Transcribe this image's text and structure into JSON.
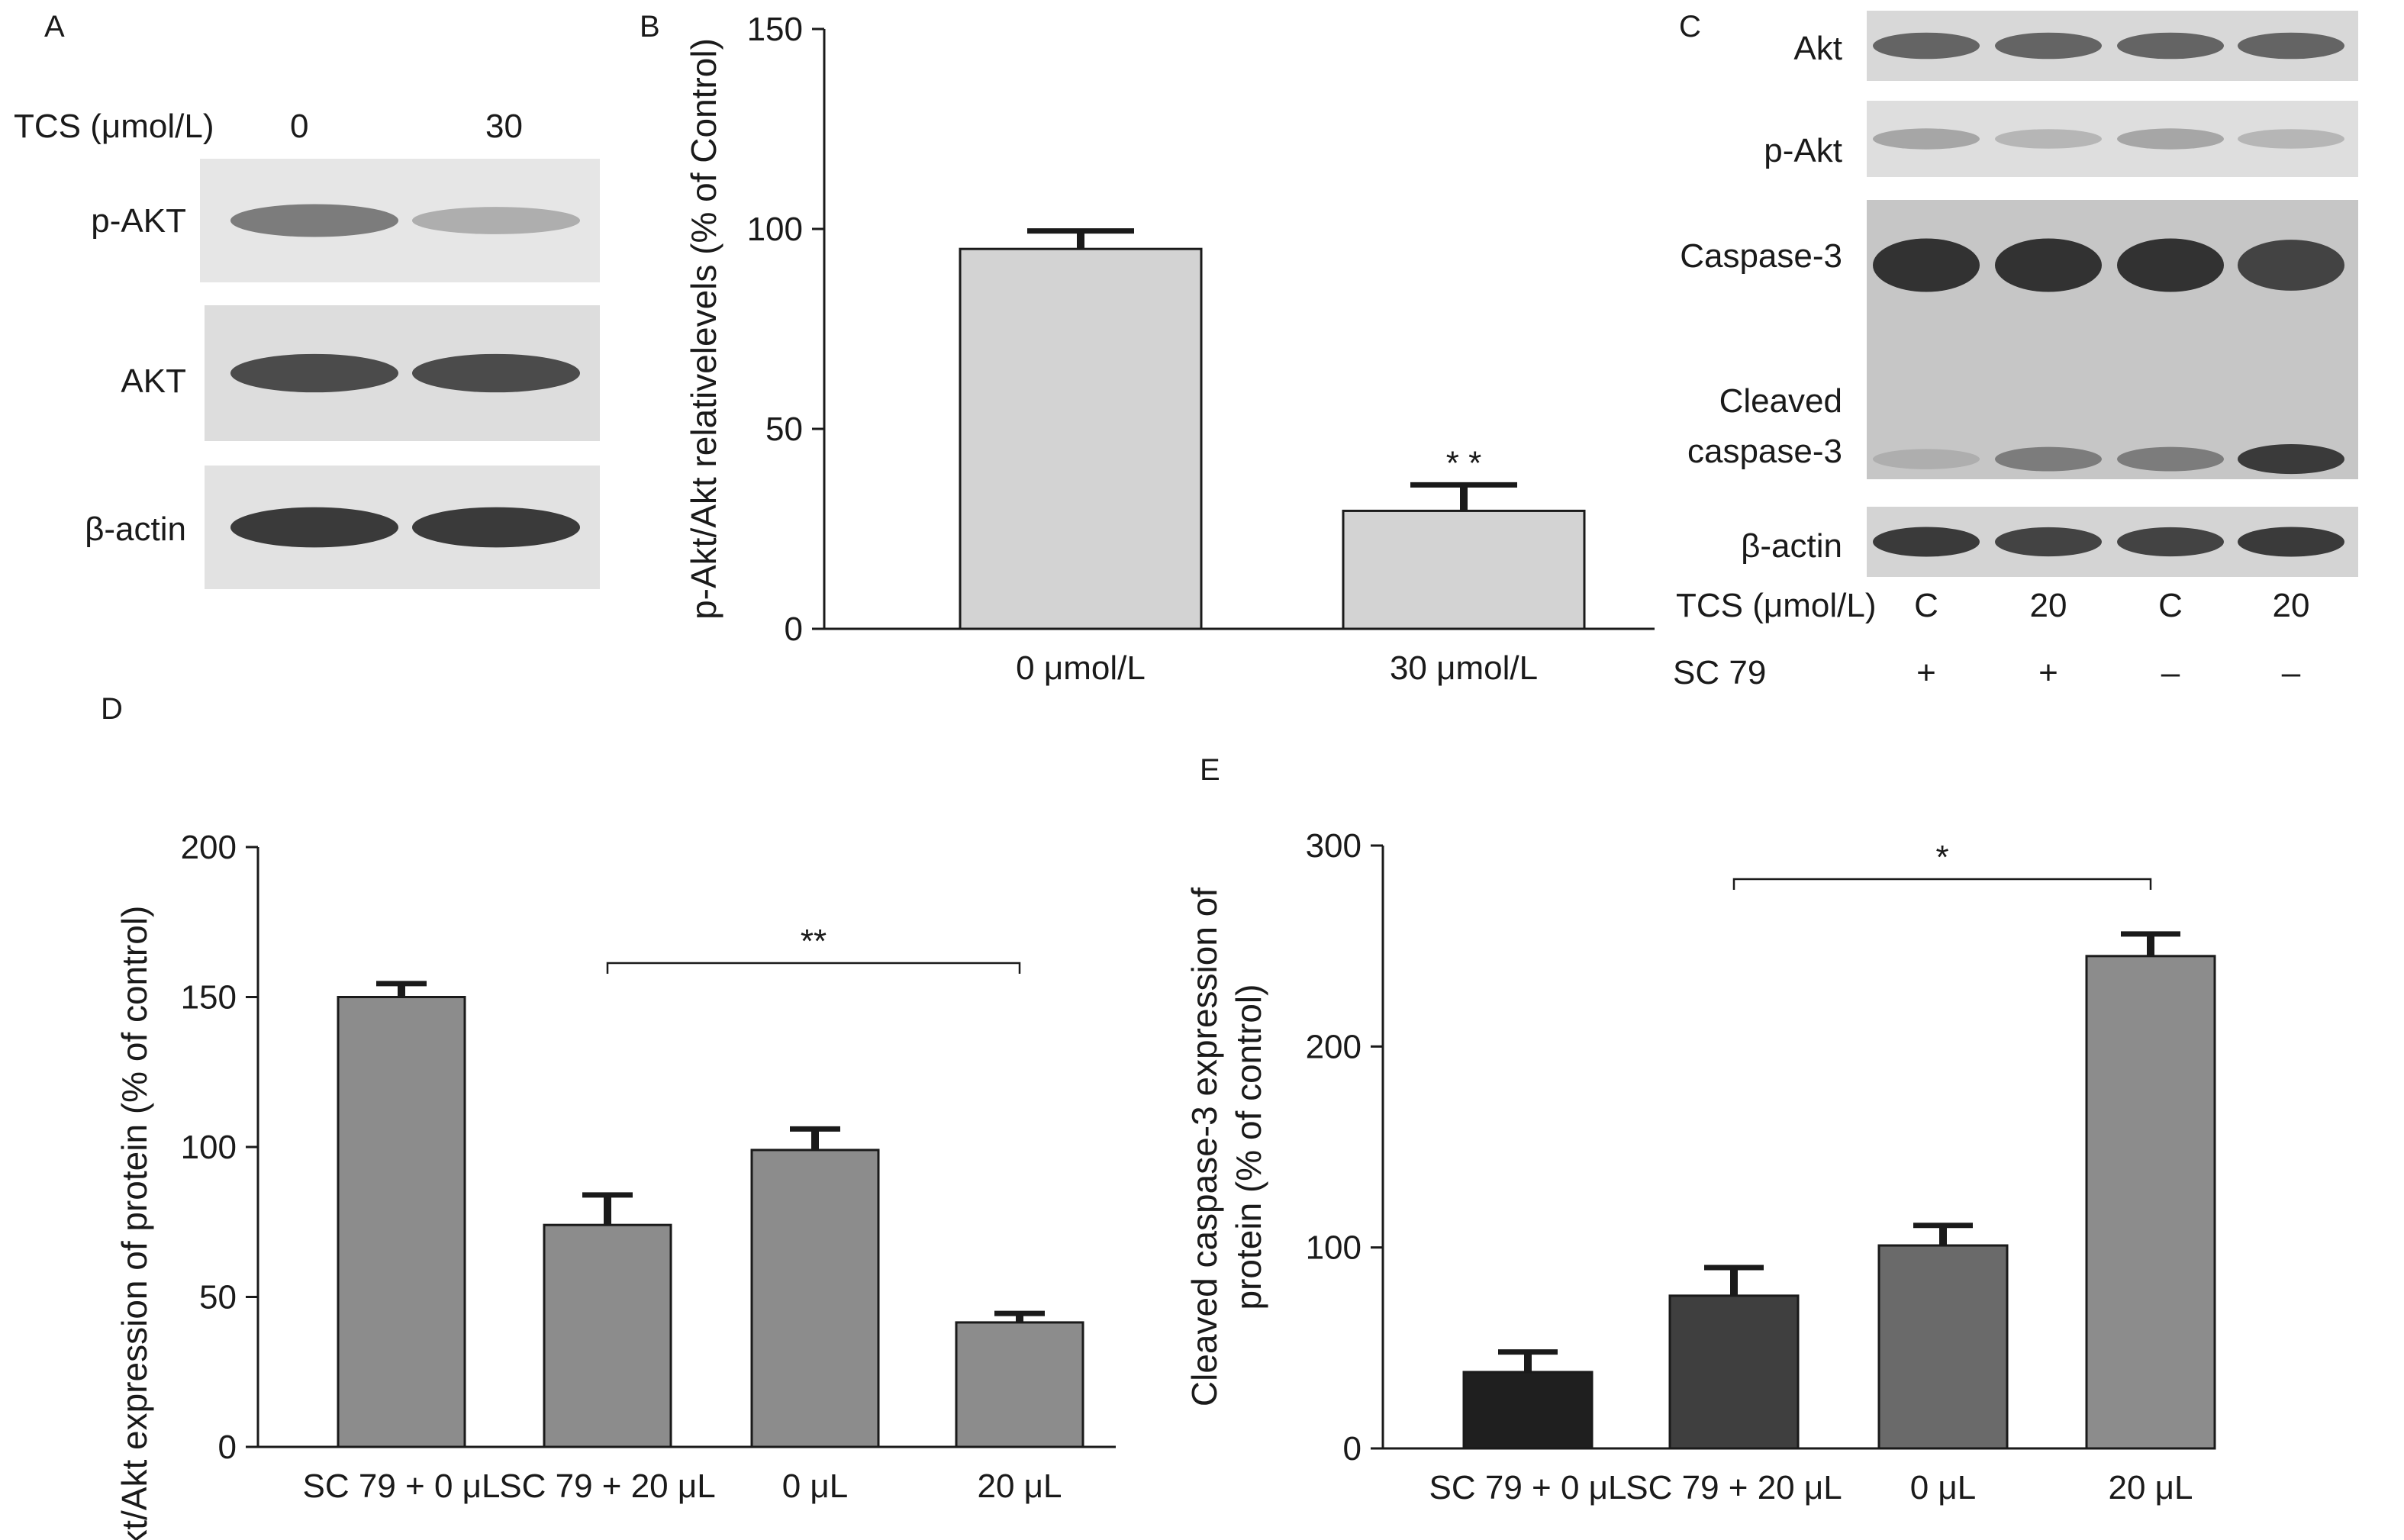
{
  "panel_letters": {
    "a": "A",
    "b": "B",
    "c": "C",
    "d": "D",
    "e": "E"
  },
  "panel_a": {
    "tcs_label": "TCS (μmol/L)",
    "doses": [
      "0",
      "30"
    ],
    "blots": [
      {
        "label": "p-AKT",
        "intensity": [
          0.55,
          0.25
        ]
      },
      {
        "label": "AKT",
        "intensity": [
          0.85,
          0.85
        ]
      },
      {
        "label": "β-actin",
        "intensity": [
          0.95,
          0.95
        ]
      }
    ]
  },
  "panel_c": {
    "blots": [
      {
        "label": "Akt",
        "intensity": [
          0.7,
          0.7,
          0.7,
          0.7
        ]
      },
      {
        "label": "p-Akt",
        "intensity": [
          0.3,
          0.2,
          0.3,
          0.2
        ]
      },
      {
        "label": "Caspase-3",
        "intensity": [
          1.0,
          1.0,
          1.0,
          0.9
        ]
      },
      {
        "label": "Cleaved caspase-3",
        "label_lines": [
          "Cleaved",
          "caspase-3"
        ],
        "intensity": [
          0.25,
          0.55,
          0.55,
          0.95
        ]
      },
      {
        "label": "β-actin",
        "intensity": [
          0.95,
          0.9,
          0.9,
          0.95
        ]
      }
    ],
    "tcs_label": "TCS (μmol/L)",
    "tcs_values": [
      "C",
      "20",
      "C",
      "20"
    ],
    "sc79_label": "SC 79",
    "sc79_values": [
      "+",
      "+",
      "–",
      "–"
    ]
  },
  "chart_data": [
    {
      "panel": "B",
      "type": "bar",
      "categories": [
        "0 μmol/L",
        "30 μmol/L"
      ],
      "values": [
        95,
        29.5
      ],
      "errors": [
        4.5,
        6.5
      ],
      "ylabel": "p-Akt/Akt relativelevels (% of Control)",
      "ylim": [
        0,
        150
      ],
      "yticks": [
        0,
        50,
        100,
        150
      ],
      "significance": [
        {
          "bar": 1,
          "label": "* *"
        }
      ],
      "bar_color": "#d3d3d3",
      "grid": false
    },
    {
      "panel": "D",
      "type": "bar",
      "categories": [
        "SC 79 + 0 μL",
        "SC 79 + 20 μL",
        "0 μL",
        "20 μL"
      ],
      "values": [
        150,
        74,
        99,
        41.5
      ],
      "errors": [
        4.5,
        10,
        7,
        3
      ],
      "ylabel": "p-Akt/Akt expression of protein (% of control)",
      "ylim": [
        0,
        200
      ],
      "yticks": [
        0,
        50,
        100,
        150,
        200
      ],
      "significance": [
        {
          "from": 1,
          "to": 3,
          "label": "**"
        }
      ],
      "bar_color": "#8c8c8c",
      "grid": false
    },
    {
      "panel": "E",
      "type": "bar",
      "categories": [
        "SC 79 + 0 μL",
        "SC 79 + 20 μL",
        "0 μL",
        "20 μL"
      ],
      "values": [
        38,
        76,
        101,
        245
      ],
      "errors": [
        10,
        14,
        10,
        11
      ],
      "ylabel": "Cleaved caspase-3 expression of protein (% of control)",
      "ylabel_lines": [
        "Cleaved caspase-3 expression of",
        "protein (% of control)"
      ],
      "ylim": [
        0,
        300
      ],
      "yticks": [
        0,
        100,
        200,
        300
      ],
      "significance": [
        {
          "from": 1,
          "to": 3,
          "label": "*"
        }
      ],
      "bar_colors": [
        "#1f1f1f",
        "#3f3f3f",
        "#6a6a6a",
        "#8c8c8c"
      ],
      "grid": false
    }
  ]
}
